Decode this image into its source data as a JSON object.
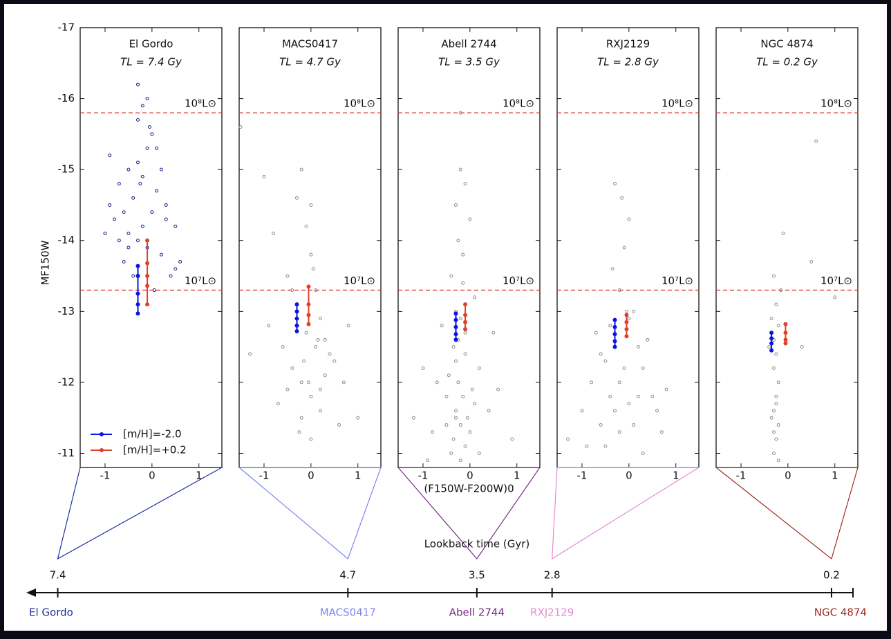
{
  "chart_data": [
    {
      "type": "scatter",
      "title": "El Gordo",
      "subtitle": "TL = 7.4 Gy",
      "ylabel": "MF150W",
      "xlim": [
        -1.53,
        1.49
      ],
      "ylim": [
        -10.8,
        -17
      ],
      "xticks": [
        -1,
        0,
        1
      ],
      "yticks": [
        -17,
        -16,
        -15,
        -14,
        -13,
        -12,
        -11
      ],
      "hlines": [
        {
          "value": -15.8,
          "label": "10⁸L⊙"
        },
        {
          "value": -13.3,
          "label": "10⁷L⊙"
        }
      ],
      "hline_color": "#e03030",
      "legend": "lower left",
      "series": [
        {
          "color": "#1a1a8c",
          "style": "points",
          "x": [
            -0.3,
            -0.2,
            0.0,
            -0.1,
            -0.3,
            -0.5,
            -0.7,
            -0.9,
            -1.0,
            -0.6,
            -0.4,
            -0.2,
            0.1,
            0.3,
            0.5,
            0.6,
            -0.8,
            -0.5,
            -0.3,
            -0.1,
            0.2,
            0.4,
            -0.6,
            -0.9,
            -0.4,
            0.0,
            0.2,
            -0.2,
            -0.7,
            0.5,
            -0.1,
            -0.3,
            0.3,
            -0.5,
            0.1,
            -0.05,
            -0.25,
            0.05
          ],
          "values": [
            -16.2,
            -15.9,
            -15.5,
            -15.3,
            -15.1,
            -15.0,
            -14.8,
            -14.5,
            -14.1,
            -14.4,
            -14.6,
            -14.9,
            -14.7,
            -14.3,
            -14.2,
            -13.7,
            -14.3,
            -14.1,
            -14.0,
            -13.9,
            -13.8,
            -13.5,
            -13.7,
            -15.2,
            -13.5,
            -14.4,
            -15.0,
            -14.2,
            -14.0,
            -13.6,
            -16.0,
            -15.7,
            -14.5,
            -13.9,
            -15.3,
            -15.6,
            -14.8,
            -13.3
          ]
        },
        {
          "name": "[m/H]=-2.0",
          "color": "#0a14e0",
          "style": "track",
          "x": [
            -0.3,
            -0.3,
            -0.3,
            -0.3,
            -0.3
          ],
          "values": [
            -13.64,
            -13.5,
            -13.25,
            -13.1,
            -12.97
          ]
        },
        {
          "name": "[m/H]=+0.2",
          "color": "#e0402a",
          "style": "track",
          "x": [
            -0.1,
            -0.1,
            -0.1,
            -0.1,
            -0.1
          ],
          "values": [
            -14.0,
            -13.68,
            -13.5,
            -13.36,
            -13.1
          ]
        }
      ]
    },
    {
      "type": "scatter",
      "title": "MACS0417",
      "subtitle": "TL = 4.7 Gy",
      "xlim": [
        -1.53,
        1.49
      ],
      "ylim": [
        -10.8,
        -17
      ],
      "xticks": [
        -1,
        0,
        1
      ],
      "hlines": [
        {
          "value": -15.8,
          "label": "10⁸L⊙"
        },
        {
          "value": -13.3,
          "label": "10⁷L⊙"
        }
      ],
      "hline_color": "#e03030",
      "series": [
        {
          "color": "#8c8c8c",
          "style": "points",
          "x": [
            -1.5,
            -1.0,
            -0.8,
            -0.5,
            -0.3,
            -0.2,
            -0.1,
            0,
            0.1,
            0.2,
            0.3,
            0.5,
            0.7,
            1.0,
            -0.6,
            -0.4,
            -0.2,
            0,
            0.2,
            0.4,
            -0.9,
            -0.3,
            -0.1,
            0.1,
            0.3,
            -0.5,
            -0.2,
            0,
            0.2,
            0.6,
            -1.3,
            -0.7,
            0.8,
            -0.4,
            0.0,
            -0.15,
            0.15,
            -0.05,
            -0.25,
            0.05
          ],
          "values": [
            -15.6,
            -14.9,
            -14.1,
            -13.5,
            -14.6,
            -15.0,
            -14.2,
            -13.8,
            -13.3,
            -12.9,
            -12.6,
            -12.3,
            -12.0,
            -11.5,
            -12.5,
            -12.2,
            -12.0,
            -11.8,
            -11.6,
            -12.4,
            -12.8,
            -13.0,
            -12.7,
            -12.5,
            -12.1,
            -11.9,
            -11.5,
            -11.2,
            -11.9,
            -11.4,
            -12.4,
            -11.7,
            -12.8,
            -13.3,
            -14.5,
            -12.3,
            -12.6,
            -12.0,
            -11.3,
            -13.6
          ]
        },
        {
          "color": "#0a14e0",
          "style": "track",
          "x": [
            -0.3,
            -0.3,
            -0.3,
            -0.3,
            -0.3
          ],
          "values": [
            -13.1,
            -13.0,
            -12.9,
            -12.8,
            -12.72
          ]
        },
        {
          "color": "#e0402a",
          "style": "track",
          "x": [
            -0.05,
            -0.05,
            -0.05,
            -0.05
          ],
          "values": [
            -13.35,
            -13.1,
            -12.95,
            -12.82
          ]
        }
      ]
    },
    {
      "type": "scatter",
      "title": "Abell 2744",
      "subtitle": "TL = 3.5 Gy",
      "xlabel": "(F150W-F200W)0",
      "xlim": [
        -1.53,
        1.49
      ],
      "ylim": [
        -10.8,
        -17
      ],
      "xticks": [
        -1,
        0,
        1
      ],
      "hlines": [
        {
          "value": -15.8,
          "label": "10⁸L⊙"
        },
        {
          "value": -13.3,
          "label": "10⁷L⊙"
        }
      ],
      "hline_color": "#e03030",
      "series": [
        {
          "color": "#8c8c8c",
          "style": "points",
          "x": [
            -1.2,
            -1.0,
            -0.8,
            -0.6,
            -0.5,
            -0.4,
            -0.3,
            -0.25,
            -0.2,
            -0.15,
            -0.1,
            0,
            0.1,
            0.2,
            0.4,
            0.6,
            0.9,
            -0.7,
            -0.35,
            -0.3,
            -0.25,
            -0.2,
            -0.15,
            -0.1,
            -0.05,
            -0.3,
            -0.2,
            -0.1,
            -0.4,
            -0.2,
            0.0,
            -0.5,
            -0.3,
            -0.15,
            0.05,
            -0.25,
            -0.35,
            -0.1,
            -0.2,
            -0.3,
            0.2,
            -0.9,
            0.5,
            -0.45,
            0.1
          ],
          "values": [
            -11.5,
            -12.2,
            -11.3,
            -12.8,
            -11.8,
            -13.5,
            -14.5,
            -12.6,
            -15.0,
            -13.8,
            -12.4,
            -14.3,
            -13.2,
            -12.2,
            -11.6,
            -11.9,
            -11.2,
            -12.0,
            -11.2,
            -11.6,
            -12.0,
            -11.4,
            -11.8,
            -11.1,
            -11.5,
            -12.3,
            -12.9,
            -12.7,
            -11.0,
            -10.9,
            -11.3,
            -11.4,
            -13.0,
            -13.4,
            -11.9,
            -14.0,
            -12.5,
            -14.8,
            -15.8,
            -11.5,
            -11.0,
            -10.9,
            -12.7,
            -12.1,
            -11.7
          ]
        },
        {
          "color": "#0a14e0",
          "style": "track",
          "x": [
            -0.3,
            -0.3,
            -0.3,
            -0.3,
            -0.3
          ],
          "values": [
            -12.97,
            -12.88,
            -12.78,
            -12.68,
            -12.6
          ]
        },
        {
          "color": "#e0402a",
          "style": "track",
          "x": [
            -0.1,
            -0.1,
            -0.1,
            -0.1
          ],
          "values": [
            -13.1,
            -12.95,
            -12.85,
            -12.75
          ]
        }
      ]
    },
    {
      "type": "scatter",
      "title": "RXJ2129",
      "subtitle": "TL = 2.8 Gy",
      "xlim": [
        -1.53,
        1.49
      ],
      "ylim": [
        -10.8,
        -17
      ],
      "xticks": [
        -1,
        0,
        1
      ],
      "hlines": [
        {
          "value": -15.8,
          "label": "10⁸L⊙"
        },
        {
          "value": -13.3,
          "label": "10⁷L⊙"
        }
      ],
      "hline_color": "#e03030",
      "series": [
        {
          "color": "#8c8c8c",
          "style": "points",
          "x": [
            -1.3,
            -1.0,
            -0.8,
            -0.6,
            -0.5,
            -0.4,
            -0.3,
            -0.2,
            -0.1,
            0,
            0.1,
            0.2,
            0.3,
            0.5,
            0.7,
            0.8,
            -0.9,
            -0.7,
            -0.5,
            -0.3,
            -0.1,
            0.1,
            0.3,
            0.4,
            -0.2,
            0,
            -0.4,
            -0.2,
            0,
            0.2,
            -0.35,
            -0.05,
            0.6,
            -0.6,
            -0.15
          ],
          "values": [
            -11.2,
            -11.6,
            -12.0,
            -11.4,
            -12.3,
            -11.8,
            -14.8,
            -13.3,
            -13.9,
            -14.3,
            -13.0,
            -12.5,
            -12.2,
            -11.8,
            -11.3,
            -11.9,
            -11.1,
            -12.7,
            -11.1,
            -11.6,
            -12.2,
            -11.4,
            -11.0,
            -12.6,
            -12.0,
            -11.7,
            -12.8,
            -11.3,
            -12.9,
            -11.8,
            -13.6,
            -13.0,
            -11.6,
            -12.4,
            -14.6
          ]
        },
        {
          "color": "#0a14e0",
          "style": "track",
          "x": [
            -0.3,
            -0.3,
            -0.3,
            -0.3,
            -0.3
          ],
          "values": [
            -12.88,
            -12.78,
            -12.68,
            -12.58,
            -12.5
          ]
        },
        {
          "color": "#e0402a",
          "style": "track",
          "x": [
            -0.05,
            -0.05,
            -0.05,
            -0.05
          ],
          "values": [
            -12.95,
            -12.85,
            -12.75,
            -12.65
          ]
        }
      ]
    },
    {
      "type": "scatter",
      "title": "NGC 4874",
      "subtitle": "TL = 0.2 Gy",
      "xlim": [
        -1.53,
        1.49
      ],
      "ylim": [
        -10.8,
        -17
      ],
      "xticks": [
        -1,
        0,
        1
      ],
      "hlines": [
        {
          "value": -15.8,
          "label": "10⁸L⊙"
        },
        {
          "value": -13.3,
          "label": "10⁷L⊙"
        }
      ],
      "hline_color": "#e03030",
      "series": [
        {
          "color": "#8c8c8c",
          "style": "points",
          "x": [
            -0.3,
            -0.25,
            -0.2,
            -0.3,
            -0.25,
            -0.2,
            -0.3,
            -0.25,
            -0.35,
            -0.2,
            -0.3,
            -0.25,
            -0.3,
            -0.2,
            -0.25,
            -0.3,
            0.6,
            0.5,
            1.0,
            -0.1,
            -0.35,
            -0.15,
            0.3,
            -0.4
          ],
          "values": [
            -11.0,
            -11.2,
            -11.4,
            -11.6,
            -11.8,
            -12.0,
            -12.2,
            -12.4,
            -11.5,
            -10.9,
            -11.3,
            -11.7,
            -12.6,
            -12.8,
            -13.1,
            -13.5,
            -15.4,
            -13.7,
            -13.2,
            -14.1,
            -12.9,
            -13.3,
            -12.5,
            -12.5
          ]
        },
        {
          "color": "#0a14e0",
          "style": "track",
          "x": [
            -0.35,
            -0.35,
            -0.35,
            -0.35
          ],
          "values": [
            -12.7,
            -12.62,
            -12.55,
            -12.45
          ]
        },
        {
          "color": "#e0402a",
          "style": "track",
          "x": [
            -0.05,
            -0.05,
            -0.05,
            -0.05
          ],
          "values": [
            -12.82,
            -12.7,
            -12.6,
            -12.55
          ]
        }
      ]
    },
    {
      "type": "timeline",
      "xlabel": "Lookback time (Gyr)",
      "xlim": [
        7.68,
        0
      ],
      "xticks": [
        7.4,
        4.7,
        3.5,
        2.8,
        0.2
      ],
      "categories": [
        "El Gordo",
        "MACS0417",
        "Abell 2744",
        "RXJ2129",
        "NGC 4874"
      ],
      "values": [
        7.4,
        4.7,
        3.5,
        2.8,
        0.2
      ],
      "colors": [
        "#1f2f9e",
        "#7b86f0",
        "#7a2a8a",
        "#e28ad2",
        "#a02a20"
      ]
    }
  ]
}
